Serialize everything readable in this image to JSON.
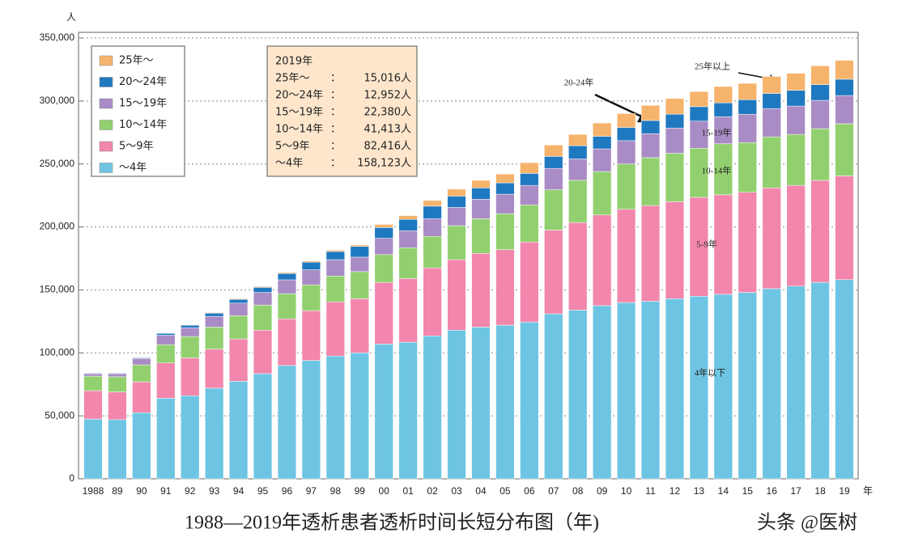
{
  "chart_data": {
    "type": "stacked_bar",
    "title": "1988—2019年透析患者透析时间长短分布图（年)",
    "watermark": "头条 @医树",
    "y_unit": "人",
    "x_unit": "年",
    "categories": [
      "1988",
      "89",
      "90",
      "91",
      "92",
      "93",
      "94",
      "95",
      "96",
      "97",
      "98",
      "99",
      "00",
      "01",
      "02",
      "03",
      "04",
      "05",
      "06",
      "07",
      "08",
      "09",
      "10",
      "11",
      "12",
      "13",
      "14",
      "15",
      "16",
      "17",
      "18",
      "19"
    ],
    "series": [
      {
        "name": "～4年",
        "color": "#6ec5e3",
        "values": [
          47500,
          47000,
          52500,
          64000,
          66000,
          72000,
          77500,
          83500,
          90000,
          94000,
          97500,
          100000,
          107000,
          108500,
          113500,
          118000,
          120500,
          122000,
          124500,
          131000,
          134000,
          137500,
          140000,
          141000,
          143000,
          145000,
          146500,
          148000,
          151000,
          153000,
          156000,
          158123
        ]
      },
      {
        "name": "5～9年",
        "color": "#f286ad",
        "values": [
          22500,
          22000,
          24500,
          28000,
          30000,
          31000,
          33500,
          34500,
          37000,
          39500,
          43000,
          43000,
          49000,
          50500,
          54000,
          56000,
          58500,
          60000,
          63500,
          66500,
          69500,
          72000,
          74000,
          76000,
          77000,
          78500,
          79000,
          79500,
          80000,
          80000,
          81000,
          82416
        ]
      },
      {
        "name": "10～14年",
        "color": "#92d06f",
        "values": [
          11500,
          12000,
          13500,
          14500,
          17000,
          17500,
          18500,
          20000,
          20000,
          20500,
          20500,
          21500,
          22000,
          24500,
          25000,
          27000,
          27500,
          28500,
          29500,
          32000,
          33500,
          34500,
          36000,
          38000,
          38500,
          39000,
          40500,
          39500,
          40500,
          40500,
          41000,
          41413
        ]
      },
      {
        "name": "15～19年",
        "color": "#a98cc5",
        "values": [
          2000,
          2500,
          5000,
          7500,
          7000,
          8500,
          10000,
          10000,
          11000,
          12000,
          13000,
          11500,
          13000,
          13500,
          14000,
          14500,
          15500,
          15500,
          15500,
          17000,
          17000,
          18000,
          18500,
          19000,
          20000,
          21500,
          21500,
          22500,
          22500,
          22500,
          22500,
          22380
        ]
      },
      {
        "name": "20～24年",
        "color": "#1f79c1",
        "values": [
          500,
          500,
          600,
          1500,
          2000,
          2500,
          3000,
          4000,
          5000,
          6000,
          6500,
          8500,
          8500,
          9000,
          10000,
          9000,
          9000,
          9000,
          9500,
          9500,
          10500,
          10000,
          10500,
          10500,
          11000,
          11500,
          11000,
          11500,
          12000,
          12500,
          12500,
          12952
        ]
      },
      {
        "name": "25年～",
        "color": "#f6b36c",
        "values": [
          300,
          300,
          300,
          300,
          400,
          500,
          600,
          700,
          800,
          900,
          1000,
          1200,
          2500,
          3000,
          4500,
          5500,
          6000,
          7000,
          8500,
          9000,
          9000,
          10500,
          11000,
          12000,
          12500,
          12000,
          13000,
          13000,
          13500,
          13500,
          15000,
          15016
        ]
      }
    ],
    "ylim": [
      0,
      350000
    ],
    "yticks": [
      0,
      {
        "value": 50000,
        "label": "50,000"
      },
      {
        "value": 100000,
        "label": "100,000"
      },
      {
        "value": 150000,
        "label": "150,000"
      },
      {
        "value": 200000,
        "label": "200,000"
      },
      {
        "value": 250000,
        "label": "250,000"
      },
      {
        "value": 300000,
        "label": "300,000"
      },
      {
        "value": 350000,
        "label": "350,000"
      }
    ],
    "grid": true,
    "legend": "top-left",
    "info_box": {
      "title": "2019年",
      "separator": "：",
      "rows": [
        {
          "label": "25年～",
          "value": "15,016人"
        },
        {
          "label": "20～24年",
          "value": "12,952人"
        },
        {
          "label": "15～19年",
          "value": "22,380人"
        },
        {
          "label": "10～14年",
          "value": "41,413人"
        },
        {
          "label": "5～9年",
          "value": "82,416人"
        },
        {
          "label": "～4年",
          "value": "158,123人"
        }
      ]
    },
    "annotations": [
      "20-24年",
      "25年以上",
      "15-19年",
      "10-14年",
      "5-9年",
      "4年以下"
    ]
  }
}
